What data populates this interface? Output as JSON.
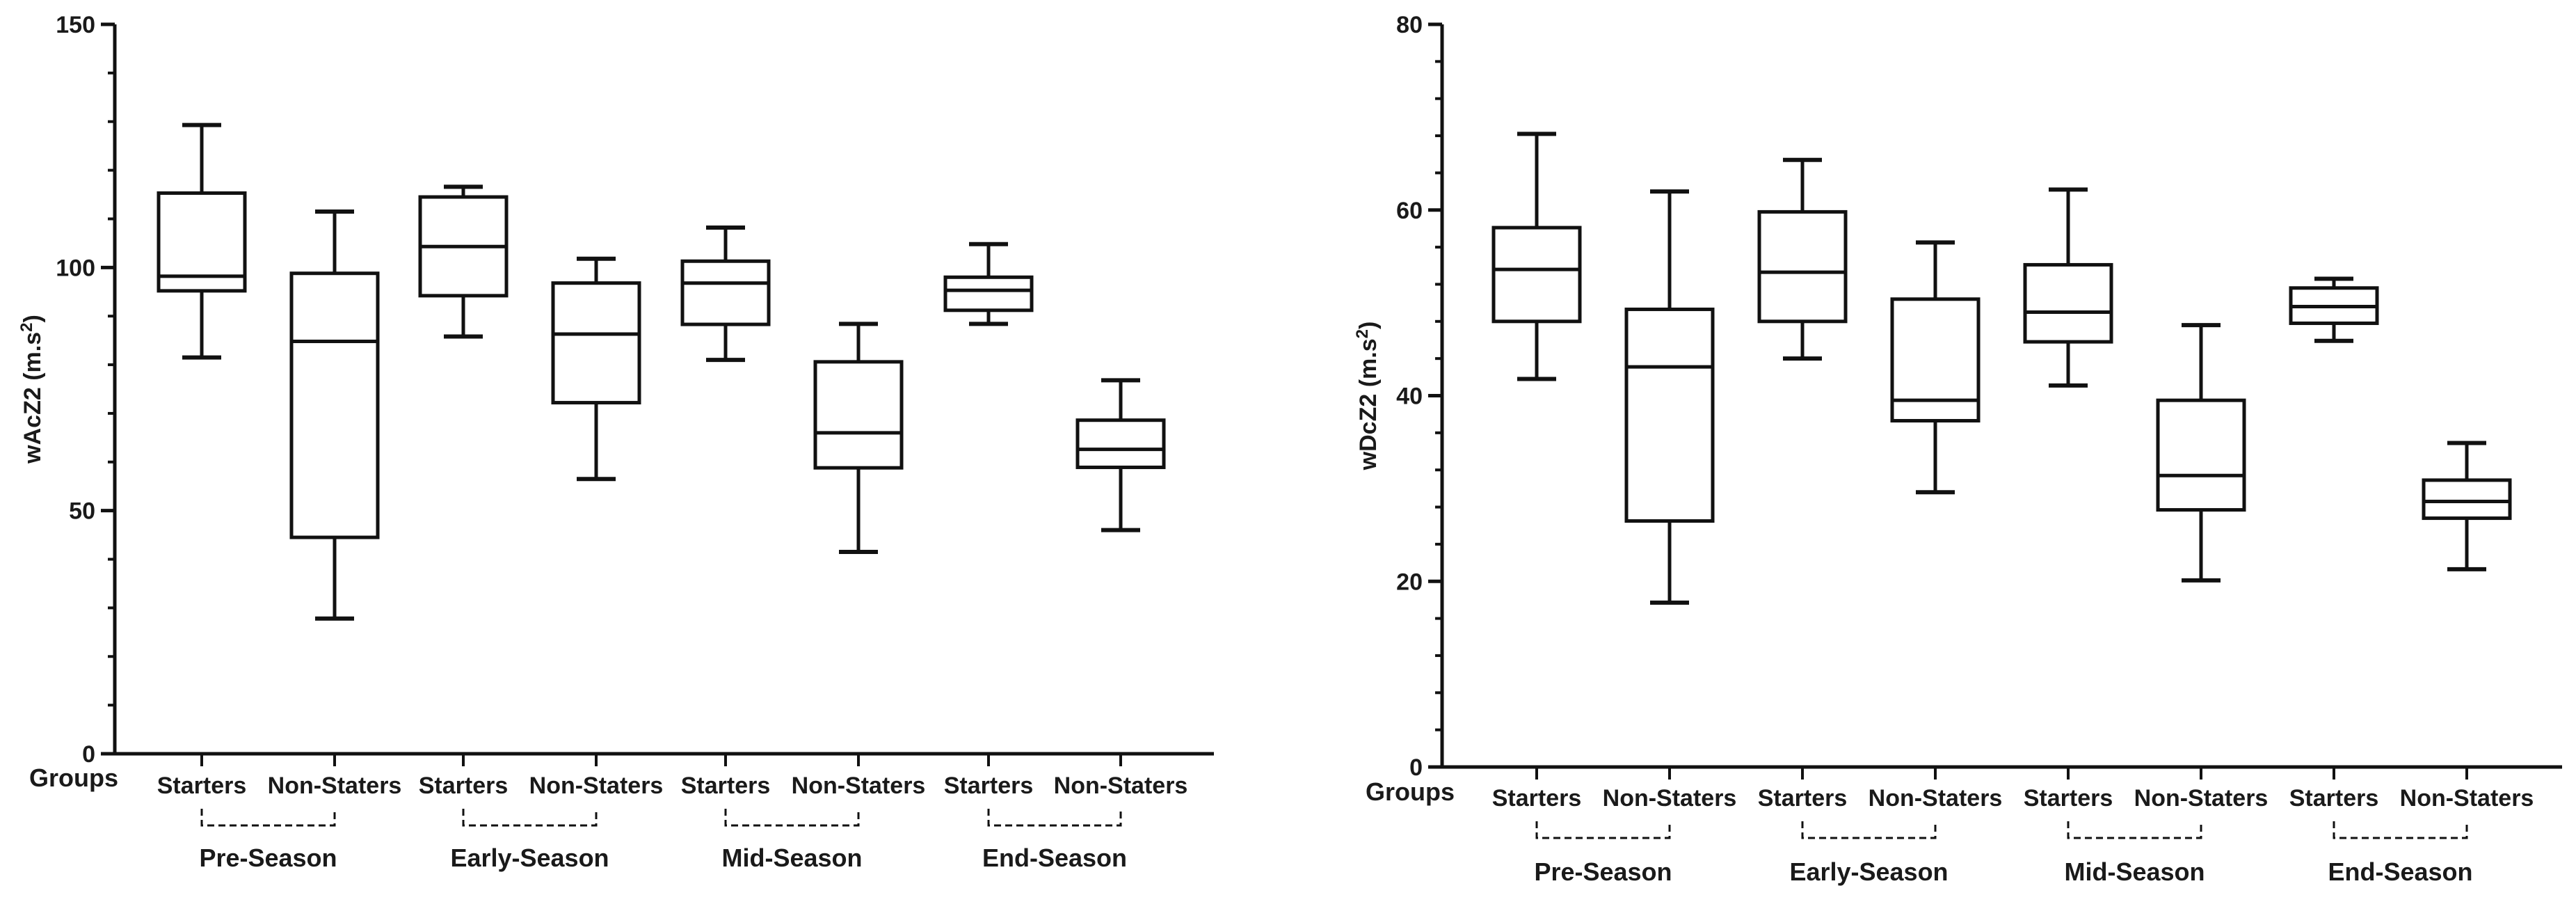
{
  "chart_data": [
    {
      "type": "box",
      "ylabel": "wAcZ2 (m.s",
      "ylabel_sup": "2",
      "ylabel_close": ")",
      "ylim": [
        0,
        150
      ],
      "yticks": [
        0,
        50,
        100,
        150
      ],
      "y_minor_step": 10,
      "groups_label": "Groups",
      "phases": [
        "Pre-Season",
        "Early-Season",
        "Mid-Season",
        "End-Season"
      ],
      "categories": [
        "Starters",
        "Non-Staters",
        "Starters",
        "Non-Staters",
        "Starters",
        "Non-Staters",
        "Starters",
        "Non-Staters"
      ],
      "boxes": [
        {
          "min": 81.5,
          "q1": 95.2,
          "median": 98.2,
          "q3": 115.3,
          "max": 129.3
        },
        {
          "min": 27.8,
          "q1": 44.5,
          "median": 84.8,
          "q3": 98.8,
          "max": 111.5
        },
        {
          "min": 85.8,
          "q1": 94.2,
          "median": 104.3,
          "q3": 114.5,
          "max": 116.6
        },
        {
          "min": 56.5,
          "q1": 72.2,
          "median": 86.3,
          "q3": 96.8,
          "max": 101.8
        },
        {
          "min": 81.0,
          "q1": 88.3,
          "median": 96.8,
          "q3": 101.3,
          "max": 108.2
        },
        {
          "min": 41.5,
          "q1": 58.8,
          "median": 66.0,
          "q3": 80.6,
          "max": 88.4
        },
        {
          "min": 88.4,
          "q1": 91.2,
          "median": 95.3,
          "q3": 98.0,
          "max": 104.8
        },
        {
          "min": 46.0,
          "q1": 58.9,
          "median": 62.6,
          "q3": 68.6,
          "max": 76.8
        }
      ]
    },
    {
      "type": "box",
      "ylabel": "wDcZ2 (m.s",
      "ylabel_sup": "2",
      "ylabel_close": ")",
      "ylim": [
        0,
        80
      ],
      "yticks": [
        0,
        20,
        40,
        60,
        80
      ],
      "y_minor_step": 4,
      "groups_label": "Groups",
      "phases": [
        "Pre-Season",
        "Early-Season",
        "Mid-Season",
        "End-Season"
      ],
      "categories": [
        "Starters",
        "Non-Staters",
        "Starters",
        "Non-Staters",
        "Starters",
        "Non-Staters",
        "Starters",
        "Non-Staters"
      ],
      "boxes": [
        {
          "min": 41.8,
          "q1": 48.0,
          "median": 53.6,
          "q3": 58.1,
          "max": 68.2
        },
        {
          "min": 17.7,
          "q1": 26.5,
          "median": 43.1,
          "q3": 49.3,
          "max": 62.0
        },
        {
          "min": 44.0,
          "q1": 48.0,
          "median": 53.3,
          "q3": 59.8,
          "max": 65.4
        },
        {
          "min": 29.6,
          "q1": 37.3,
          "median": 39.5,
          "q3": 50.4,
          "max": 56.5
        },
        {
          "min": 41.1,
          "q1": 45.8,
          "median": 49.0,
          "q3": 54.1,
          "max": 62.2
        },
        {
          "min": 20.1,
          "q1": 27.7,
          "median": 31.4,
          "q3": 39.5,
          "max": 47.6
        },
        {
          "min": 45.9,
          "q1": 47.8,
          "median": 49.6,
          "q3": 51.6,
          "max": 52.6
        },
        {
          "min": 21.3,
          "q1": 26.8,
          "median": 28.6,
          "q3": 30.9,
          "max": 34.9
        }
      ]
    }
  ]
}
